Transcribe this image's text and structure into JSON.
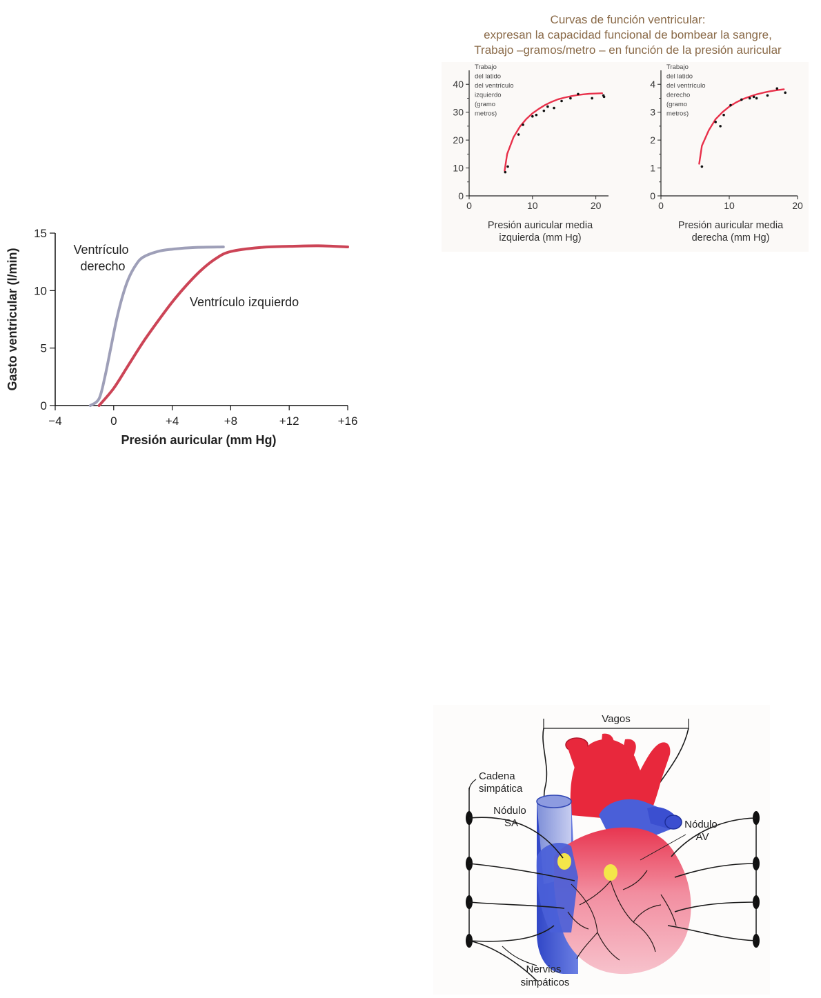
{
  "chart_data": [
    {
      "type": "line",
      "title": "",
      "xlabel": "Presión auricular (mm Hg)",
      "ylabel": "Gasto ventricular (l/min)",
      "xlim": [
        -4,
        16
      ],
      "ylim": [
        0,
        15
      ],
      "x_ticks": [
        "−4",
        "0",
        "+4",
        "+8",
        "+12",
        "+16"
      ],
      "x_tick_values": [
        -4,
        0,
        4,
        8,
        12,
        16
      ],
      "y_ticks": [
        "0",
        "5",
        "10",
        "15"
      ],
      "y_tick_values": [
        0,
        5,
        10,
        15
      ],
      "grid": false,
      "series": [
        {
          "name": "Ventrículo derecho",
          "label_lines": [
            "Ventrículo",
            "derecho"
          ],
          "color": "#9e9fb8",
          "x": [
            -1.6,
            -1.0,
            -0.6,
            -0.2,
            0.2,
            0.6,
            1.0,
            1.5,
            2.0,
            3.0,
            4.0,
            5.5,
            7.5
          ],
          "y": [
            0.0,
            0.6,
            2.5,
            5.0,
            7.5,
            9.5,
            11.0,
            12.2,
            12.9,
            13.4,
            13.6,
            13.75,
            13.8
          ]
        },
        {
          "name": "Ventrículo izquierdo",
          "label_lines": [
            "Ventrículo izquierdo"
          ],
          "color": "#cc4456",
          "x": [
            -1.0,
            0.0,
            1.0,
            2.0,
            3.0,
            4.0,
            5.0,
            6.0,
            7.0,
            8.0,
            10.0,
            12.0,
            14.0,
            16.0
          ],
          "y": [
            0.0,
            1.5,
            3.5,
            5.5,
            7.3,
            9.0,
            10.5,
            11.8,
            12.8,
            13.4,
            13.75,
            13.85,
            13.9,
            13.8
          ]
        }
      ]
    },
    {
      "type": "scatter",
      "title_lines": [
        "Curvas de función ventricular:",
        "expresan la capacidad funcional de bombear la sangre,",
        "Trabajo –gramos/metro – en función de la presión auricular"
      ],
      "title_color": "#8a6a48",
      "curve_color": "#e8304a",
      "panels": [
        {
          "name": "izquierdo",
          "ylabel_lines": [
            "Trabajo",
            "del latido",
            "del ventrículo",
            "izquierdo",
            "(gramo",
            "metros)"
          ],
          "xlabel_lines": [
            "Presión auricular media",
            "izquierda (mm Hg)"
          ],
          "xlim": [
            0,
            22
          ],
          "ylim": [
            0,
            45
          ],
          "x_ticks": [
            "0",
            "10",
            "20"
          ],
          "x_tick_values": [
            0,
            10,
            20
          ],
          "y_ticks": [
            "0",
            "10",
            "20",
            "30",
            "40"
          ],
          "y_tick_values": [
            0,
            10,
            20,
            30,
            40
          ],
          "curve": {
            "x": [
              5.6,
              6,
              7,
              8,
              9,
              10,
              11,
              12,
              13,
              14,
              15,
              16,
              17,
              18,
              19,
              20,
              21
            ],
            "y": [
              9,
              15,
              21,
              24.8,
              27.5,
              29.6,
              31.2,
              32.6,
              33.7,
              34.6,
              35.2,
              35.7,
              36.1,
              36.4,
              36.6,
              36.7,
              36.8
            ]
          },
          "points": {
            "x": [
              5.7,
              6.1,
              7.8,
              8.5,
              10.0,
              10.6,
              11.8,
              12.4,
              13.4,
              14.6,
              16.0,
              17.2,
              19.4,
              21.2,
              21.3
            ],
            "y": [
              8.5,
              10.5,
              22.0,
              25.5,
              28.5,
              29.0,
              30.5,
              32.0,
              31.5,
              34.0,
              35.0,
              36.5,
              35.0,
              36.0,
              35.5
            ]
          }
        },
        {
          "name": "derecho",
          "ylabel_lines": [
            "Trabajo",
            "del latido",
            "del ventrículo",
            "derecho",
            "(gramo",
            "metros)"
          ],
          "xlabel_lines": [
            "Presión auricular media",
            "derecha (mm Hg)"
          ],
          "xlim": [
            0,
            20
          ],
          "ylim": [
            0,
            4.5
          ],
          "x_ticks": [
            "0",
            "10",
            "20"
          ],
          "x_tick_values": [
            0,
            10,
            20
          ],
          "y_ticks": [
            "0",
            "1",
            "2",
            "3",
            "4"
          ],
          "y_tick_values": [
            0,
            1,
            2,
            3,
            4
          ],
          "curve": {
            "x": [
              5.6,
              6,
              7,
              8,
              9,
              10,
              11,
              12,
              13,
              14,
              15,
              16,
              17,
              18
            ],
            "y": [
              1.15,
              1.8,
              2.35,
              2.75,
              3.0,
              3.2,
              3.35,
              3.47,
              3.56,
              3.64,
              3.7,
              3.75,
              3.79,
              3.82
            ]
          },
          "points": {
            "x": [
              6.0,
              8.0,
              8.7,
              9.2,
              10.2,
              11.8,
              13.0,
              13.6,
              14.0,
              15.6,
              17.0,
              18.2
            ],
            "y": [
              1.05,
              2.65,
              2.5,
              2.9,
              3.25,
              3.45,
              3.5,
              3.55,
              3.5,
              3.6,
              3.85,
              3.7
            ]
          }
        }
      ]
    }
  ],
  "heart": {
    "labels": {
      "vagos": "Vagos",
      "cadena_lines": [
        "Cadena",
        "simpática"
      ],
      "sa_lines": [
        "Nódulo",
        "SA"
      ],
      "av_lines": [
        "Nódulo",
        "AV"
      ],
      "nervios_lines": [
        "Nervios",
        "simpáticos"
      ]
    },
    "colors": {
      "artery": "#e8283c",
      "vein": "#3b4fd0",
      "node": "#f4e64a",
      "nerve": "#1a1a1a"
    }
  }
}
